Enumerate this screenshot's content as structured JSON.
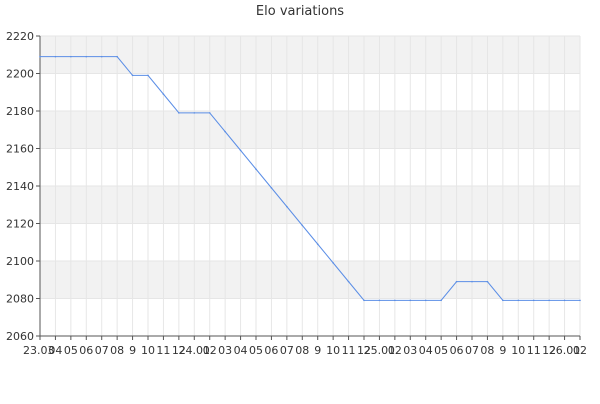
{
  "chart_data": {
    "type": "line",
    "title": "Elo variations",
    "xlabel": "",
    "ylabel": "",
    "ylim": [
      2060,
      2220
    ],
    "yticks": [
      2060,
      2080,
      2100,
      2120,
      2140,
      2160,
      2180,
      2200,
      2220
    ],
    "grid": true,
    "legend": "none",
    "x_tick_labels": [
      "23.03",
      "04",
      "05",
      "06",
      "07",
      "08",
      "9",
      "10",
      "11",
      "12",
      "24.01",
      "02",
      "03",
      "04",
      "05",
      "06",
      "07",
      "08",
      "9",
      "10",
      "11",
      "12",
      "25.01",
      "02",
      "03",
      "04",
      "05",
      "06",
      "07",
      "08",
      "9",
      "10",
      "11",
      "12",
      "26.01",
      "02"
    ],
    "series": [
      {
        "values": [
          2209,
          2209,
          2209,
          2209,
          2209,
          2209,
          2199,
          2199,
          2189,
          2179,
          2179,
          2179,
          2169,
          2159,
          2149,
          2139,
          2129,
          2119,
          2109,
          2099,
          2089,
          2079,
          2079,
          2079,
          2079,
          2079,
          2079,
          2089,
          2089,
          2089,
          2079,
          2079,
          2079,
          2079,
          2079,
          2079
        ]
      }
    ],
    "colors": {
      "line": "#5b8ee6",
      "band": "#f2f2f2",
      "grid": "#e6e6e6",
      "axis": "#555555",
      "text": "#333333"
    }
  }
}
